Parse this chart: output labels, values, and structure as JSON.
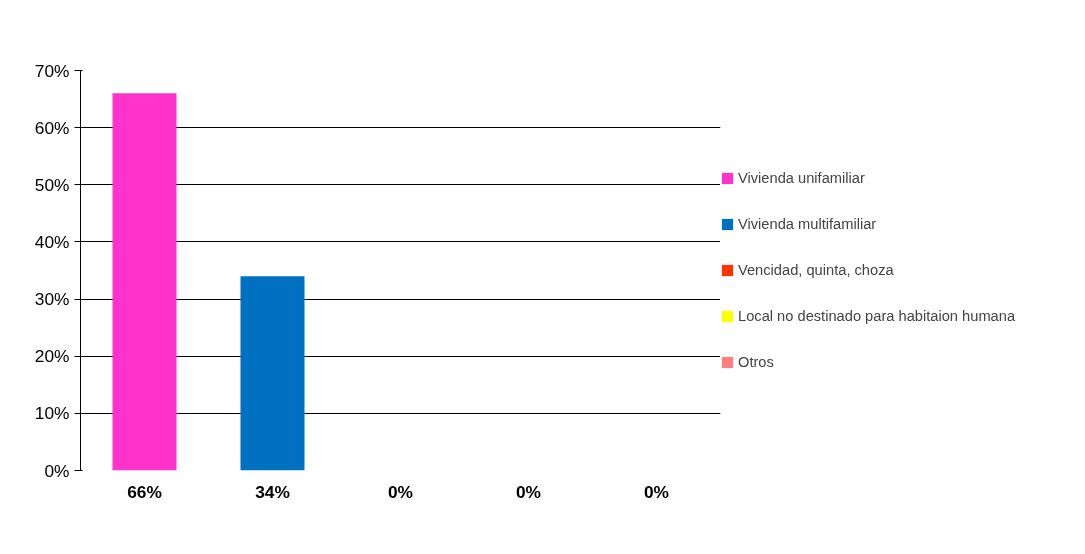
{
  "chart_data": {
    "type": "bar",
    "categories": [
      "66%",
      "34%",
      "0%",
      "0%",
      "0%"
    ],
    "series": [
      {
        "name": "Vivienda unifamiliar",
        "color": "#ff33cc",
        "values": [
          66,
          null,
          null,
          null,
          null
        ]
      },
      {
        "name": "Vivienda multifamiliar",
        "color": "#0070c0",
        "values": [
          null,
          34,
          null,
          null,
          null
        ]
      },
      {
        "name": "Vencidad, quinta, choza",
        "color": "#ff3300",
        "values": [
          null,
          null,
          0,
          null,
          null
        ]
      },
      {
        "name": "Local no destinado para habitaion humana",
        "color": "#ffff00",
        "values": [
          null,
          null,
          null,
          0,
          null
        ]
      },
      {
        "name": "Otros",
        "color": "#ff7f7f",
        "values": [
          null,
          null,
          null,
          null,
          0
        ]
      }
    ],
    "ylim": [
      0,
      70
    ],
    "yticks": [
      {
        "value": 0,
        "label": "0%"
      },
      {
        "value": 10,
        "label": "10%"
      },
      {
        "value": 20,
        "label": "20%"
      },
      {
        "value": 30,
        "label": "30%"
      },
      {
        "value": 40,
        "label": "40%"
      },
      {
        "value": 50,
        "label": "50%"
      },
      {
        "value": 60,
        "label": "60%"
      },
      {
        "value": 70,
        "label": "70%"
      }
    ],
    "grid": "y",
    "legend": "right"
  }
}
